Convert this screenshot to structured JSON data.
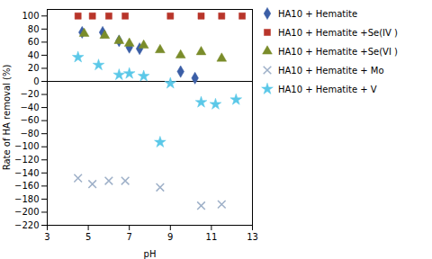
{
  "chart_data": {
    "type": "scatter",
    "xlabel": "pH",
    "ylabel": "Rate of HA removal (%)",
    "xlim": [
      3,
      13
    ],
    "ylim": [
      -220,
      110
    ],
    "xticks": [
      3,
      5,
      7,
      9,
      11,
      13
    ],
    "yticks": [
      -220,
      -200,
      -180,
      -160,
      -140,
      -120,
      -100,
      -80,
      -60,
      -40,
      -20,
      0,
      20,
      40,
      60,
      80,
      100
    ],
    "hline": 0,
    "legend": "right",
    "grid": false,
    "series": [
      {
        "name": "HA10 + Hematite",
        "color": "#3B5EA6",
        "marker": "diamond",
        "x": [
          4.7,
          5.7,
          6.5,
          7.0,
          7.5,
          9.5,
          10.2
        ],
        "values": [
          75,
          75,
          62,
          52,
          50,
          15,
          5
        ]
      },
      {
        "name": "HA10 + Hematite  +Se(IV )",
        "color": "#B8352A",
        "marker": "square",
        "x": [
          4.5,
          5.2,
          6.0,
          6.8,
          9.0,
          10.5,
          11.5,
          12.5
        ],
        "values": [
          100,
          100,
          100,
          100,
          100,
          100,
          100,
          100
        ]
      },
      {
        "name": "HA10 + Hematite  +Se(VI )",
        "color": "#7A8C2A",
        "marker": "triangle",
        "x": [
          4.8,
          5.8,
          6.5,
          7.0,
          7.7,
          8.5,
          9.5,
          10.5,
          11.5
        ],
        "values": [
          73,
          70,
          62,
          58,
          55,
          48,
          40,
          45,
          35
        ]
      },
      {
        "name": "HA10 + Hematite + Mo",
        "color": "#9EB0C8",
        "marker": "x",
        "x": [
          4.5,
          5.2,
          6.0,
          6.8,
          8.5,
          10.5,
          11.5
        ],
        "values": [
          -148,
          -157,
          -152,
          -152,
          -162,
          -190,
          -188
        ]
      },
      {
        "name": "HA10 + Hematite + V",
        "color": "#5BC8E8",
        "marker": "star",
        "x": [
          4.5,
          5.5,
          6.5,
          7.0,
          7.7,
          8.5,
          9.0,
          10.5,
          11.2,
          12.2
        ],
        "values": [
          37,
          25,
          10,
          12,
          8,
          -93,
          -3,
          -32,
          -35,
          -28
        ]
      }
    ]
  }
}
